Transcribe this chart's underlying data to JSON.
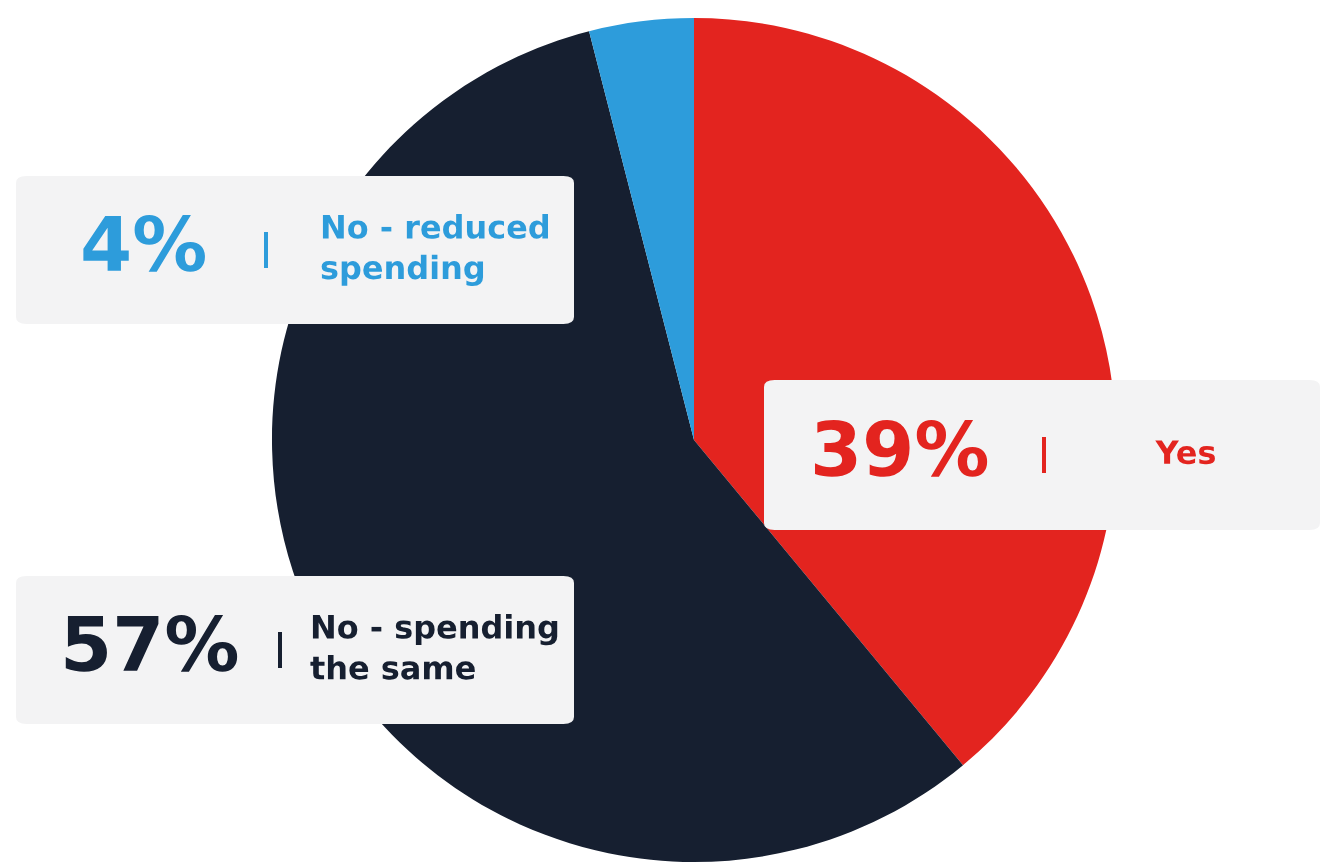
{
  "chart_data": {
    "type": "pie",
    "categories": [
      "Yes",
      "No - spending\nthe same",
      "No - reduced\nspending"
    ],
    "values": [
      39,
      57,
      4
    ],
    "value_labels": [
      "39%",
      "57%",
      "4%"
    ],
    "colors": [
      "#e3241f",
      "#161f30",
      "#2d9cdb"
    ],
    "legend": "left"
  }
}
